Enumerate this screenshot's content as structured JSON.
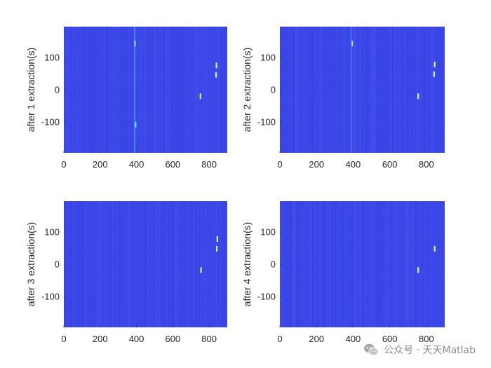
{
  "watermark": {
    "text": "公众号 · 天天Matlab",
    "icon": "wechat-icon"
  },
  "chart_data": [
    {
      "type": "heatmap",
      "ylabel": "after 1 extraction(s)",
      "xlim": [
        0,
        900
      ],
      "ylim": [
        -195,
        195
      ],
      "xticks": [
        0,
        200,
        400,
        600,
        800
      ],
      "yticks": [
        100,
        0,
        -100
      ],
      "background_color": "#3d47e8",
      "faint_stripes_x": [
        388,
        392
      ],
      "bright_marks": [
        {
          "x": 392,
          "y": 143,
          "color": "#7ad4ff"
        },
        {
          "x": 395,
          "y": -108,
          "color": "#7ad4ff"
        },
        {
          "x": 752,
          "y": -20,
          "color": "#d9f28c"
        },
        {
          "x": 838,
          "y": 46,
          "color": "#c8f09a"
        },
        {
          "x": 840,
          "y": 75,
          "color": "#d9f28c"
        }
      ]
    },
    {
      "type": "heatmap",
      "ylabel": "after 2 extraction(s)",
      "xlim": [
        0,
        900
      ],
      "ylim": [
        -195,
        195
      ],
      "xticks": [
        0,
        200,
        400,
        600,
        800
      ],
      "yticks": [
        100,
        0,
        -100
      ],
      "background_color": "#3d47e8",
      "faint_stripes_x": [
        392
      ],
      "bright_marks": [
        {
          "x": 395,
          "y": 143,
          "color": "#8fe0d8"
        },
        {
          "x": 755,
          "y": -20,
          "color": "#d9f28c"
        },
        {
          "x": 842,
          "y": 48,
          "color": "#c8f09a"
        },
        {
          "x": 845,
          "y": 78,
          "color": "#d9f28c"
        }
      ]
    },
    {
      "type": "heatmap",
      "ylabel": "after 3 extraction(s)",
      "xlim": [
        0,
        900
      ],
      "ylim": [
        -195,
        195
      ],
      "xticks": [
        0,
        200,
        400,
        600,
        800
      ],
      "yticks": [
        100,
        0,
        -100
      ],
      "background_color": "#3d47e8",
      "faint_stripes_x": [],
      "bright_marks": [
        {
          "x": 755,
          "y": -18,
          "color": "#d9f28c"
        },
        {
          "x": 842,
          "y": 48,
          "color": "#c8f09a"
        },
        {
          "x": 845,
          "y": 78,
          "color": "#d9f28c"
        }
      ]
    },
    {
      "type": "heatmap",
      "ylabel": "after 4 extraction(s)",
      "xlim": [
        0,
        900
      ],
      "ylim": [
        -195,
        195
      ],
      "xticks": [
        0,
        200,
        400,
        600,
        800
      ],
      "yticks": [
        100,
        0,
        -100
      ],
      "background_color": "#3d47e8",
      "faint_stripes_x": [],
      "bright_marks": [
        {
          "x": 755,
          "y": -18,
          "color": "#d9f28c"
        },
        {
          "x": 845,
          "y": 48,
          "color": "#d9f28c"
        }
      ]
    }
  ]
}
